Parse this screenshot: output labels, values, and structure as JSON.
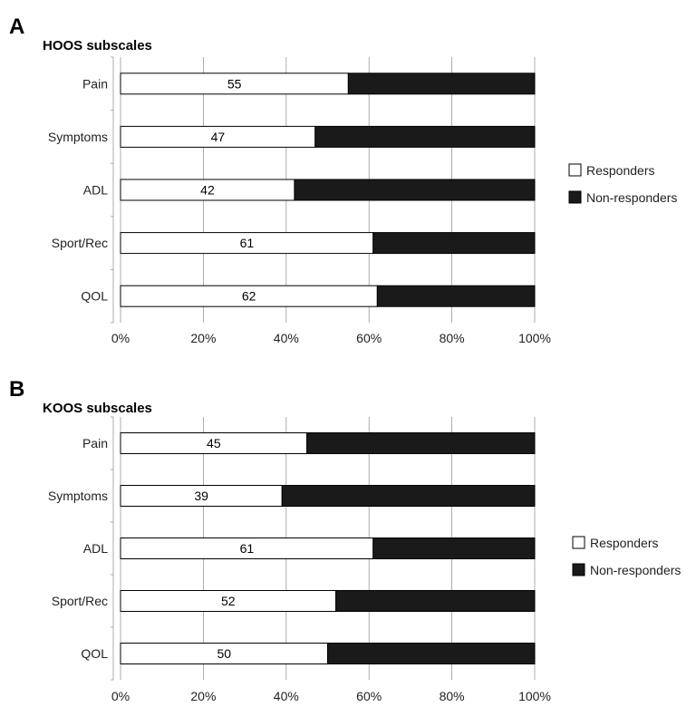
{
  "chart_data": [
    {
      "type": "bar",
      "stacked": true,
      "orientation": "horizontal",
      "panel_label": "A",
      "title": "HOOS subscales",
      "categories": [
        "Pain",
        "Symptoms",
        "ADL",
        "Sport/Rec",
        "QOL"
      ],
      "series": [
        {
          "name": "Responders",
          "values": [
            55,
            47,
            42,
            61,
            62
          ],
          "color": "#ffffff"
        },
        {
          "name": "Non-responders",
          "values": [
            45,
            53,
            58,
            39,
            38
          ],
          "color": "#1a1a1a"
        }
      ],
      "data_labels": [
        "55",
        "47",
        "42",
        "61",
        "62"
      ],
      "xlim": [
        0,
        100
      ],
      "x_ticks": [
        "0%",
        "20%",
        "40%",
        "60%",
        "80%",
        "100%"
      ],
      "grid": true,
      "legend": "right"
    },
    {
      "type": "bar",
      "stacked": true,
      "orientation": "horizontal",
      "panel_label": "B",
      "title": "KOOS subscales",
      "categories": [
        "Pain",
        "Symptoms",
        "ADL",
        "Sport/Rec",
        "QOL"
      ],
      "series": [
        {
          "name": "Responders",
          "values": [
            45,
            39,
            61,
            52,
            50
          ],
          "color": "#ffffff"
        },
        {
          "name": "Non-responders",
          "values": [
            55,
            61,
            39,
            48,
            50
          ],
          "color": "#1a1a1a"
        }
      ],
      "data_labels": [
        "45",
        "39",
        "61",
        "52",
        "50"
      ],
      "xlim": [
        0,
        100
      ],
      "x_ticks": [
        "0%",
        "20%",
        "40%",
        "60%",
        "80%",
        "100%"
      ],
      "grid": true,
      "legend": "right"
    }
  ]
}
